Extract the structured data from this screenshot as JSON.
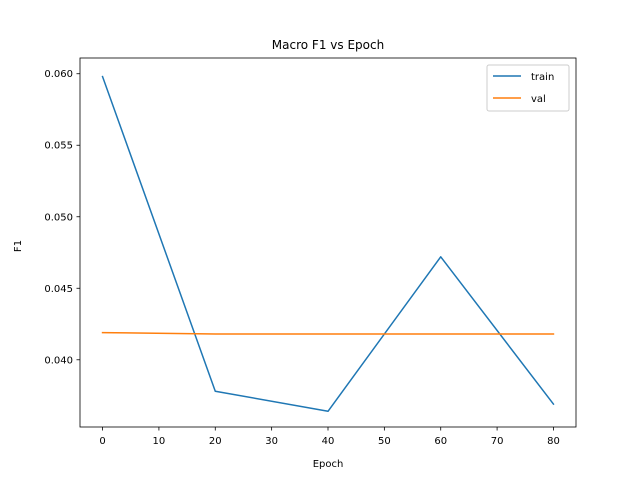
{
  "chart_data": {
    "type": "line",
    "title": "Macro F1 vs Epoch",
    "xlabel": "Epoch",
    "ylabel": "F1",
    "xlim": [
      -4,
      84
    ],
    "ylim": [
      0.0353,
      0.0611
    ],
    "x_ticks": [
      0,
      10,
      20,
      30,
      40,
      50,
      60,
      70,
      80
    ],
    "x_tick_labels": [
      "0",
      "10",
      "20",
      "30",
      "40",
      "50",
      "60",
      "70",
      "80"
    ],
    "y_ticks": [
      0.04,
      0.045,
      0.05,
      0.055,
      0.06
    ],
    "y_tick_labels": [
      "0.040",
      "0.045",
      "0.050",
      "0.055",
      "0.060"
    ],
    "x": [
      0,
      20,
      40,
      60,
      80
    ],
    "series": [
      {
        "name": "train",
        "color": "#1f77b4",
        "values": [
          0.0598,
          0.0378,
          0.0364,
          0.0472,
          0.0369
        ]
      },
      {
        "name": "val",
        "color": "#ff7f0e",
        "values": [
          0.0419,
          0.0418,
          0.0418,
          0.0418,
          0.0418
        ]
      }
    ],
    "legend_position": "top-right",
    "grid": false
  }
}
